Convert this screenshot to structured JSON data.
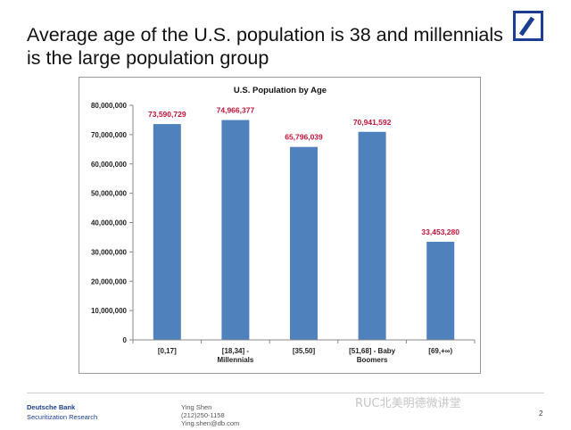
{
  "slide": {
    "title": "Average age of the U.S. population is 38 and millennials is the large population group"
  },
  "chart_data": {
    "type": "bar",
    "title": "U.S. Population by Age",
    "categories": [
      [
        "[0,17]"
      ],
      [
        "[18,34] -",
        "Millennials"
      ],
      [
        "[35,50]"
      ],
      [
        "[51,68] - Baby",
        "Boomers"
      ],
      [
        "[69,+∞)"
      ]
    ],
    "values": [
      73590729,
      74966377,
      65796039,
      70941592,
      33453280
    ],
    "data_labels": [
      "73,590,729",
      "74,966,377",
      "65,796,039",
      "70,941,592",
      "33,453,280"
    ],
    "ylim": [
      0,
      80000000
    ],
    "yticks": [
      0,
      10000000,
      20000000,
      30000000,
      40000000,
      50000000,
      60000000,
      70000000,
      80000000
    ],
    "ytick_labels": [
      "0",
      "10,000,000",
      "20,000,000",
      "30,000,000",
      "40,000,000",
      "50,000,000",
      "60,000,000",
      "70,000,000",
      "80,000,000"
    ],
    "grid": false,
    "bar_color": "#4f81bd",
    "label_color": "#c0143c"
  },
  "footer": {
    "company": "Deutsche Bank",
    "department": "Securitization Research",
    "contact_name": "Ying Shen",
    "contact_phone": "(212)250-1158",
    "contact_email": "Ying.shen@db.com",
    "watermark": "RUC北美明德微讲堂",
    "page_number": "2"
  },
  "colors": {
    "brand": "#1b3e93"
  }
}
